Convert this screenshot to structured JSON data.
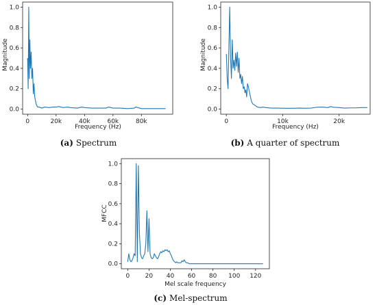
{
  "chart_data": [
    {
      "id": "a",
      "type": "line",
      "xlabel": "Frequency (Hz)",
      "ylabel": "Magnitude",
      "xlim": [
        -3500,
        102000
      ],
      "ylim": [
        -0.05,
        1.05
      ],
      "xticks": [
        0,
        20000,
        40000,
        60000,
        80000
      ],
      "xtick_labels": [
        "0",
        "20k",
        "40k",
        "60k",
        "80k"
      ],
      "yticks": [
        0.0,
        0.2,
        0.4,
        0.6,
        0.8,
        1.0
      ],
      "ytick_labels": [
        "0.0",
        "0.2",
        "0.4",
        "0.6",
        "0.8",
        "1.0"
      ],
      "caption_tag": "(a)",
      "caption_text": "Spectrum",
      "grid": false,
      "color": "#1f77b4",
      "x": [
        0,
        400,
        800,
        1200,
        1600,
        2000,
        2500,
        3000,
        3500,
        4000,
        4500,
        5000,
        6000,
        7000,
        8000,
        10000,
        12000,
        15000,
        18000,
        20000,
        22000,
        25000,
        28000,
        30000,
        35000,
        38000,
        40000,
        45000,
        48000,
        50000,
        55000,
        57000,
        60000,
        65000,
        70000,
        75000,
        76000,
        80000,
        85000,
        90000,
        95000,
        97000
      ],
      "y": [
        0.5,
        0.2,
        1.0,
        0.3,
        0.68,
        0.4,
        0.56,
        0.3,
        0.4,
        0.15,
        0.25,
        0.12,
        0.05,
        0.02,
        0.02,
        0.01,
        0.02,
        0.015,
        0.02,
        0.02,
        0.025,
        0.015,
        0.02,
        0.015,
        0.01,
        0.02,
        0.015,
        0.01,
        0.01,
        0.01,
        0.01,
        0.02,
        0.01,
        0.01,
        0.005,
        0.01,
        0.02,
        0.005,
        0.005,
        0.005,
        0.005,
        0.005
      ]
    },
    {
      "id": "b",
      "type": "line",
      "xlabel": "Frequency (Hz)",
      "ylabel": "Magnitude",
      "xlim": [
        -1000,
        25500
      ],
      "ylim": [
        -0.05,
        1.05
      ],
      "xticks": [
        0,
        10000,
        20000
      ],
      "xtick_labels": [
        "0",
        "10k",
        "20k"
      ],
      "yticks": [
        0.0,
        0.2,
        0.4,
        0.6,
        0.8,
        1.0
      ],
      "ytick_labels": [
        "0.0",
        "0.2",
        "0.4",
        "0.6",
        "0.8",
        "1.0"
      ],
      "caption_tag": "(b)",
      "caption_text": "A quarter of spectrum",
      "grid": false,
      "color": "#1f77b4",
      "x": [
        0,
        150,
        300,
        450,
        600,
        750,
        900,
        1050,
        1200,
        1350,
        1500,
        1650,
        1800,
        1950,
        2100,
        2250,
        2400,
        2550,
        2700,
        2850,
        3000,
        3150,
        3300,
        3450,
        3600,
        3750,
        3900,
        4050,
        4200,
        4350,
        4500,
        4700,
        5000,
        5500,
        6000,
        6500,
        7000,
        8000,
        9000,
        10000,
        11000,
        12000,
        13000,
        14000,
        15000,
        16000,
        17000,
        18000,
        18500,
        19000,
        20000,
        21000,
        22000,
        23000,
        24000,
        25000
      ],
      "y": [
        0.54,
        0.3,
        0.2,
        0.6,
        1.0,
        0.5,
        0.3,
        0.68,
        0.4,
        0.48,
        0.38,
        0.55,
        0.42,
        0.56,
        0.36,
        0.5,
        0.3,
        0.34,
        0.25,
        0.32,
        0.2,
        0.22,
        0.16,
        0.19,
        0.12,
        0.25,
        0.22,
        0.18,
        0.14,
        0.1,
        0.07,
        0.05,
        0.04,
        0.02,
        0.015,
        0.02,
        0.015,
        0.01,
        0.01,
        0.008,
        0.008,
        0.008,
        0.01,
        0.008,
        0.01,
        0.018,
        0.02,
        0.015,
        0.025,
        0.018,
        0.015,
        0.01,
        0.012,
        0.012,
        0.015,
        0.015
      ]
    },
    {
      "id": "c",
      "type": "line",
      "xlabel": "Mel scale frequency",
      "ylabel": "MFCC",
      "xlim": [
        -6,
        133
      ],
      "ylim": [
        -0.05,
        1.05
      ],
      "xticks": [
        0,
        20,
        40,
        60,
        80,
        100,
        120
      ],
      "xtick_labels": [
        "0",
        "20",
        "40",
        "60",
        "80",
        "100",
        "120"
      ],
      "yticks": [
        0.0,
        0.2,
        0.4,
        0.6,
        0.8,
        1.0
      ],
      "ytick_labels": [
        "0.0",
        "0.2",
        "0.4",
        "0.6",
        "0.8",
        "1.0"
      ],
      "caption_tag": "(c)",
      "caption_text": "Mel-spectrum",
      "grid": false,
      "color": "#1f77b4",
      "x": [
        0,
        1,
        2,
        3,
        4,
        5,
        6,
        7,
        8,
        9,
        10,
        11,
        12,
        13,
        14,
        15,
        16,
        17,
        18,
        19,
        20,
        21,
        22,
        23,
        24,
        25,
        26,
        27,
        28,
        29,
        30,
        31,
        32,
        33,
        34,
        35,
        36,
        37,
        38,
        39,
        40,
        41,
        42,
        43,
        44,
        45,
        46,
        47,
        48,
        49,
        50,
        51,
        52,
        53,
        54,
        55,
        56,
        58,
        60,
        70,
        80,
        90,
        100,
        110,
        120,
        127
      ],
      "y": [
        0.02,
        0.1,
        0.04,
        0.02,
        0.03,
        0.06,
        0.1,
        0.08,
        1.0,
        0.02,
        0.98,
        0.3,
        0.1,
        0.06,
        0.05,
        0.08,
        0.1,
        0.2,
        0.53,
        0.12,
        0.45,
        0.1,
        0.06,
        0.05,
        0.06,
        0.1,
        0.08,
        0.06,
        0.05,
        0.07,
        0.1,
        0.12,
        0.11,
        0.13,
        0.12,
        0.14,
        0.13,
        0.14,
        0.12,
        0.13,
        0.1,
        0.08,
        0.05,
        0.03,
        0.02,
        0.01,
        0.02,
        0.01,
        0.01,
        0.01,
        0.01,
        0.03,
        0.02,
        0.04,
        0.02,
        0.01,
        0.01,
        0.0,
        0.0,
        0.0,
        0.0,
        0.0,
        0.0,
        0.0,
        0.0,
        0.0
      ]
    }
  ]
}
